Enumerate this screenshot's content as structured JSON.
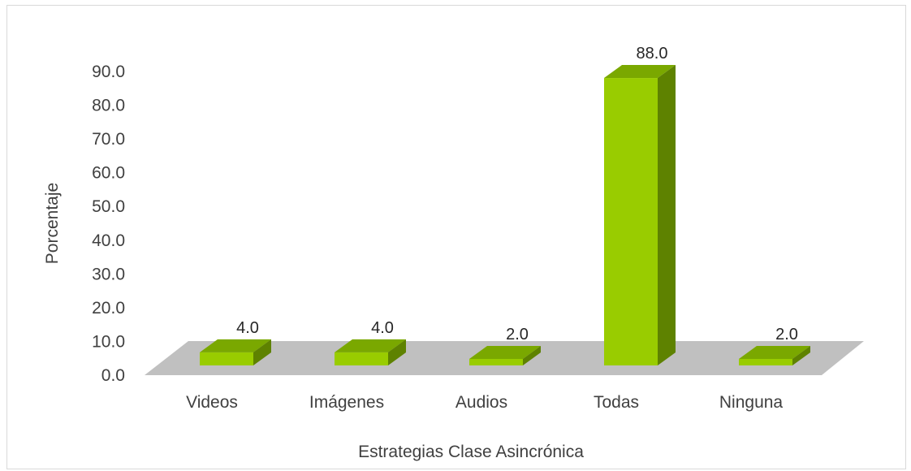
{
  "chart_data": {
    "type": "bar",
    "style": "3d-column",
    "categories": [
      "Videos",
      "Imágenes",
      "Audios",
      "Todas",
      "Ninguna"
    ],
    "values": [
      4.0,
      4.0,
      2.0,
      88.0,
      2.0
    ],
    "data_labels": [
      "4.0",
      "4.0",
      "2.0",
      "88.0",
      "2.0"
    ],
    "y_ticks": [
      "0.0",
      "10.0",
      "20.0",
      "30.0",
      "40.0",
      "50.0",
      "60.0",
      "70.0",
      "80.0",
      "90.0"
    ],
    "ylim": [
      0,
      90
    ],
    "xlabel": "Estrategias Clase Asincrónica",
    "ylabel": "Porcentaje",
    "grid": false,
    "legend": "none",
    "colors": {
      "bar_front": "#99cc00",
      "bar_top": "#7aa800",
      "bar_side": "#5e8200",
      "floor": "#c0c0c0"
    }
  }
}
